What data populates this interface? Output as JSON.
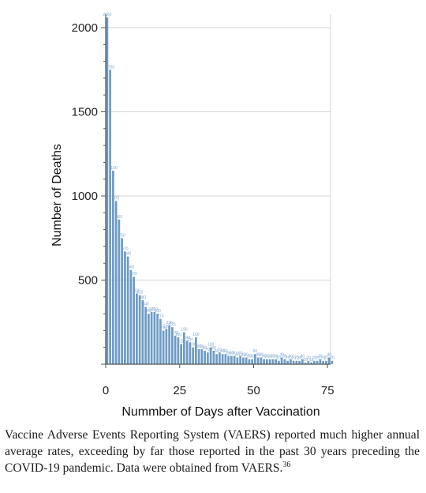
{
  "chart_data": {
    "type": "bar",
    "title": "",
    "xlabel": "Nummber of Days after Vaccination",
    "ylabel": "Number of Deaths",
    "xlim": [
      0,
      76
    ],
    "ylim": [
      0,
      2000
    ],
    "x_ticks": [
      0,
      25,
      50,
      75
    ],
    "y_ticks": [
      500,
      1000,
      1500,
      2000
    ],
    "grid": "horizontal",
    "bar_color": "#6d9bc5",
    "label_color": "#7fa7cf",
    "x": [
      0,
      1,
      2,
      3,
      4,
      5,
      6,
      7,
      8,
      9,
      10,
      11,
      12,
      13,
      14,
      15,
      16,
      17,
      18,
      19,
      20,
      21,
      22,
      23,
      24,
      25,
      26,
      27,
      28,
      29,
      30,
      31,
      32,
      33,
      34,
      35,
      36,
      37,
      38,
      39,
      40,
      41,
      42,
      43,
      44,
      45,
      46,
      47,
      48,
      49,
      50,
      51,
      52,
      53,
      54,
      55,
      56,
      57,
      58,
      59,
      60,
      61,
      62,
      63,
      64,
      65,
      66,
      67,
      68,
      69,
      70,
      71,
      72,
      73,
      74,
      75,
      76
    ],
    "values": [
      2060,
      1750,
      1150,
      970,
      860,
      750,
      670,
      640,
      560,
      520,
      420,
      410,
      380,
      340,
      300,
      310,
      310,
      300,
      270,
      200,
      210,
      230,
      220,
      170,
      160,
      120,
      190,
      140,
      130,
      100,
      160,
      90,
      90,
      80,
      70,
      100,
      80,
      60,
      70,
      60,
      60,
      50,
      50,
      50,
      40,
      50,
      40,
      40,
      30,
      30,
      60,
      40,
      40,
      30,
      30,
      30,
      30,
      30,
      20,
      40,
      30,
      20,
      30,
      20,
      20,
      20,
      30,
      10,
      20,
      10,
      20,
      20,
      30,
      20,
      20,
      40,
      20
    ]
  },
  "caption": {
    "text": "Vaccine Adverse Events Reporting System (VAERS) reported much higher annual average rates, exceeding by far those reported in the past 30 years preceding the COVID-19 pandemic. Data were obtained from VAERS.",
    "reference": "36"
  }
}
